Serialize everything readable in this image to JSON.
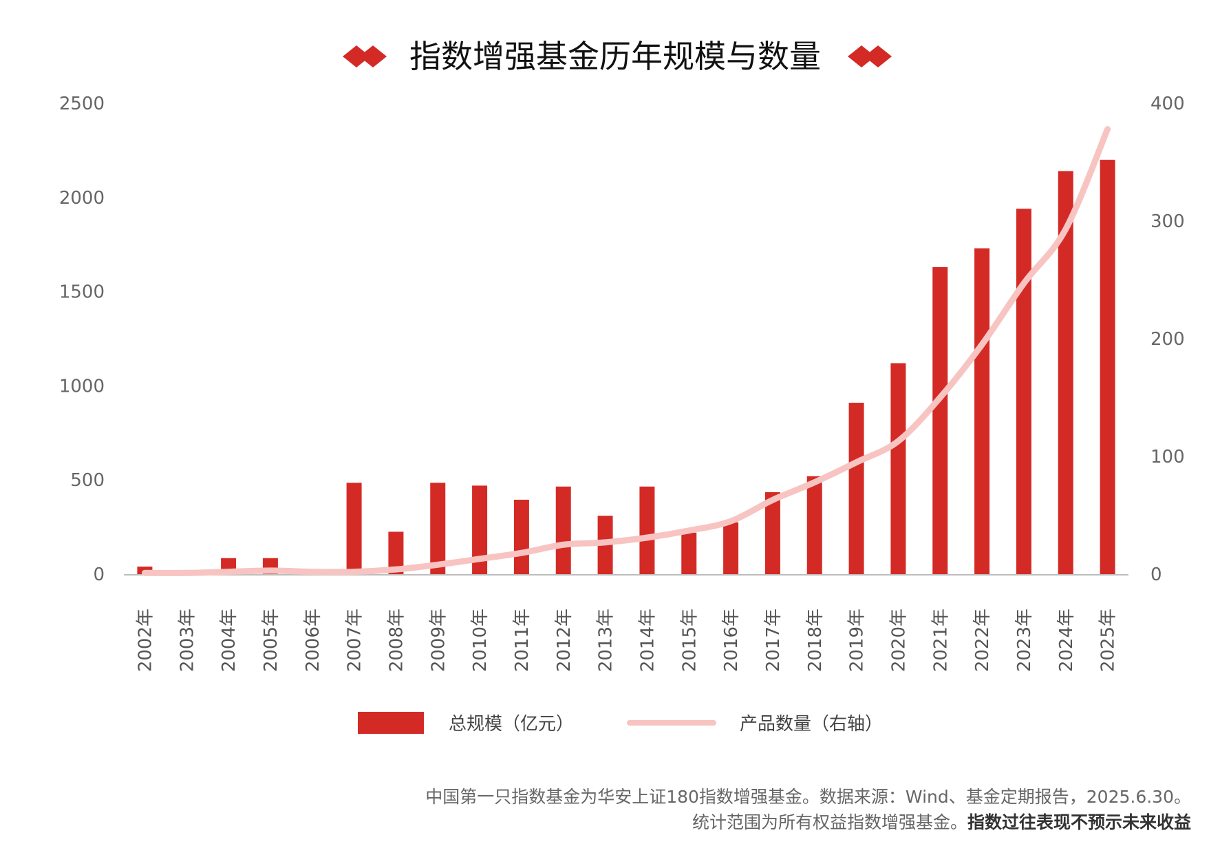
{
  "chart_data": {
    "type": "bar",
    "title": "指数增强基金历年规模与数量",
    "categories": [
      "2002年",
      "2003年",
      "2004年",
      "2005年",
      "2006年",
      "2007年",
      "2008年",
      "2009年",
      "2010年",
      "2011年",
      "2012年",
      "2013年",
      "2014年",
      "2015年",
      "2016年",
      "2017年",
      "2018年",
      "2019年",
      "2020年",
      "2021年",
      "2022年",
      "2023年",
      "2024年",
      "2025年"
    ],
    "series": [
      {
        "name": "总规模（亿元）",
        "type": "bar",
        "axis": "left",
        "color": "#d42a25",
        "values": [
          40,
          5,
          85,
          85,
          5,
          485,
          225,
          485,
          470,
          395,
          465,
          310,
          465,
          220,
          275,
          435,
          520,
          910,
          1120,
          1630,
          1730,
          1940,
          2140,
          2200
        ]
      },
      {
        "name": "产品数量（右轴）",
        "type": "line",
        "axis": "right",
        "color": "#f7c4c2",
        "values": [
          1,
          1,
          2,
          3,
          2,
          2,
          4,
          8,
          13,
          18,
          25,
          27,
          31,
          37,
          45,
          63,
          78,
          95,
          113,
          150,
          195,
          247,
          293,
          378
        ]
      }
    ],
    "y_left": {
      "min": 0,
      "max": 2500,
      "ticks": [
        0,
        500,
        1000,
        1500,
        2000,
        2500
      ]
    },
    "y_right": {
      "min": 0,
      "max": 400,
      "ticks": [
        0,
        100,
        200,
        300,
        400
      ]
    },
    "legend_position": "bottom-center",
    "grid": false
  },
  "footnote": {
    "line1": "中国第一只指数基金为华安上证180指数增强基金。数据来源：Wind、基金定期报告，2025.6.30。",
    "line2_regular": "统计范围为所有权益指数增强基金。",
    "line2_bold": "指数过往表现不预示未来收益"
  },
  "colors": {
    "accent": "#d42a25",
    "line": "#f7c4c2"
  }
}
